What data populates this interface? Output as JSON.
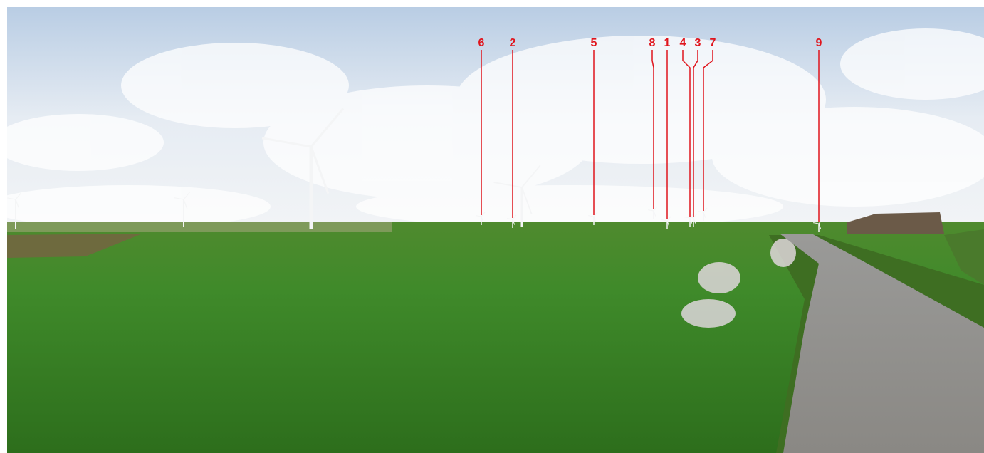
{
  "labels": [
    {
      "text": "6"
    },
    {
      "text": "2"
    },
    {
      "text": "5"
    },
    {
      "text": "8"
    },
    {
      "text": "1"
    },
    {
      "text": "4"
    },
    {
      "text": "3"
    },
    {
      "text": "7"
    },
    {
      "text": "9"
    }
  ]
}
